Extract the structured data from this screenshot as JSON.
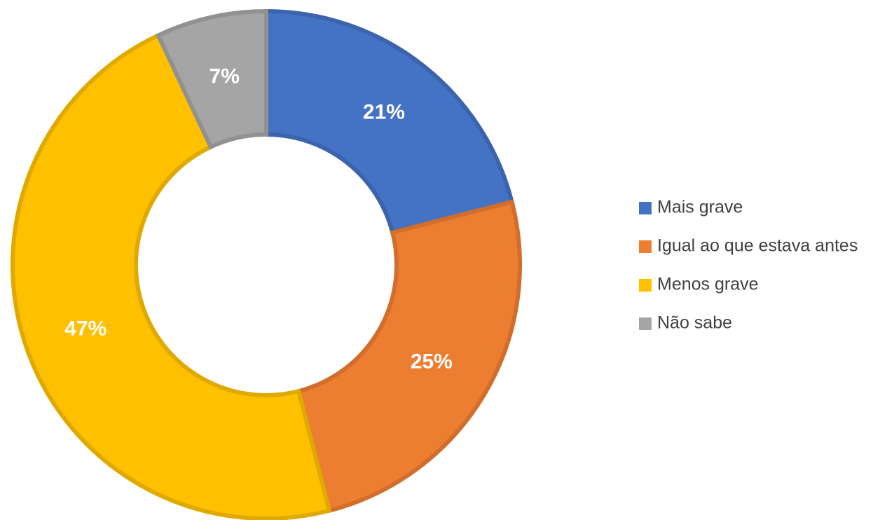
{
  "chart_data": {
    "type": "donut",
    "categories": [
      "Mais grave",
      "Igual ao que estava antes",
      "Menos grave",
      "Não sabe"
    ],
    "values": [
      21,
      25,
      47,
      7
    ],
    "value_labels": [
      "21%",
      "25%",
      "47%",
      "7%"
    ],
    "colors": [
      "#4472c4",
      "#ed7d31",
      "#ffc000",
      "#a5a5a5"
    ],
    "legend": "right"
  }
}
